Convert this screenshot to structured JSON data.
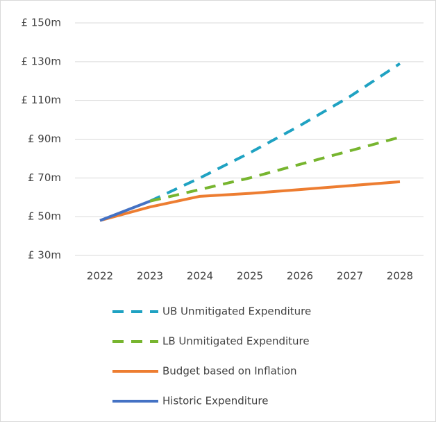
{
  "chart_data": {
    "type": "line",
    "categories": [
      "2022",
      "2023",
      "2024",
      "2025",
      "2026",
      "2027",
      "2028"
    ],
    "ylim": [
      30,
      150
    ],
    "yticks": [
      {
        "value": 30,
        "label": "£ 30m"
      },
      {
        "value": 50,
        "label": "£ 50m"
      },
      {
        "value": 70,
        "label": "£ 70m"
      },
      {
        "value": 90,
        "label": "£ 90m"
      },
      {
        "value": 110,
        "label": "£ 110m"
      },
      {
        "value": 130,
        "label": "£ 130m"
      },
      {
        "value": 150,
        "label": "£ 150m"
      }
    ],
    "grid": true,
    "legend": "bottom",
    "series": [
      {
        "name": "UB Unmitigated Expenditure",
        "color": "#1fa2c2",
        "dashed": true,
        "values": [
          null,
          58,
          70,
          83,
          97,
          112,
          129
        ]
      },
      {
        "name": "LB Unmitigated Expenditure",
        "color": "#77b52f",
        "dashed": true,
        "values": [
          null,
          58,
          64,
          70,
          77,
          84,
          91
        ]
      },
      {
        "name": "Budget based on Inflation",
        "color": "#ed7d31",
        "dashed": false,
        "values": [
          48,
          55,
          60.5,
          62,
          64,
          66,
          68
        ]
      },
      {
        "name": "Historic Expenditure",
        "color": "#4472c4",
        "dashed": false,
        "values": [
          48,
          58,
          null,
          null,
          null,
          null,
          null
        ]
      }
    ]
  }
}
